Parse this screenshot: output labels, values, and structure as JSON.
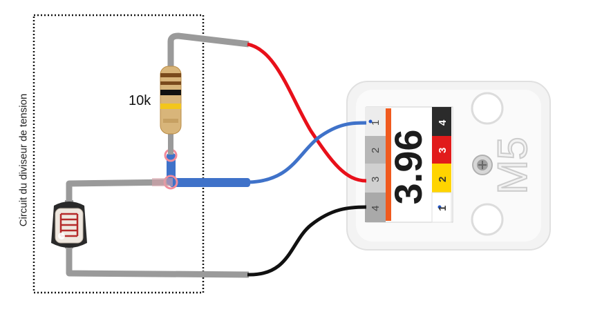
{
  "circuit": {
    "box_label": "Circuit du diviseur de tension",
    "resistor_value": "10k"
  },
  "unit": {
    "display_value": "3.96",
    "logo": "M5",
    "left_port_pins": [
      "1",
      "2",
      "3",
      "4"
    ],
    "right_port_pins": [
      "4",
      "3",
      "2",
      "1"
    ]
  },
  "colors": {
    "wire_gray": "#9a9a9a",
    "wire_red": "#e8101a",
    "wire_blue": "#3f72c9",
    "wire_black": "#111111",
    "accent_orange": "#f05a1e"
  }
}
